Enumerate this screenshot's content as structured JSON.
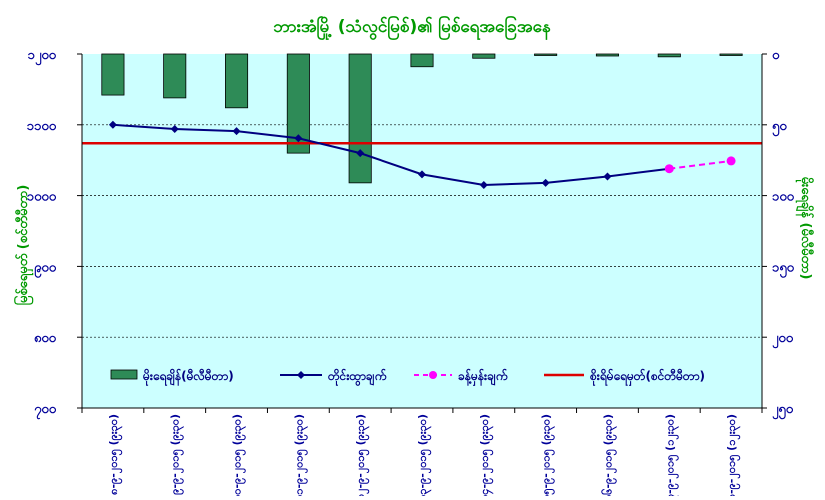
{
  "chart_data": {
    "type": "bar+line",
    "title": "ဘားအံမြို့ (သံလွင်မြစ်)၏ မြစ်ရေအခြေအနေ",
    "ylabel_left": "မြစ်ရေမှတ် (စင်တီမီတာ)",
    "ylabel_right": "မိုးရေချိန် (မီလီမီတာ)",
    "y_left": {
      "min": 700,
      "max": 1200,
      "step": 100,
      "tick_labels": [
        "၇၀၀",
        "၈၀၀",
        "၉၀၀",
        "၁၀၀၀",
        "၁၁၀၀",
        "၁၂၀၀"
      ]
    },
    "y_right": {
      "min": 0,
      "max": 250,
      "step": 50,
      "inverted": true,
      "tick_labels": [
        "၀",
        "၅၀",
        "၁၀၀",
        "၁၅၀",
        "၂၀၀",
        "၂၅၀"
      ]
    },
    "categories": [
      "၈-၉-၂၀၁၅ (၉း၃၀)",
      "၉-၉-၂၀၁၅ (၉း၃၀)",
      "၁၀-၉-၂၀၁၅ (၉း၃၀)",
      "၁၁-၉-၂၀၁၅ (၉း၃၀)",
      "၁၂-၉-၂၀၁၅ (၉း၃၀)",
      "၁၃-၉-၂၀၁၅ (၉း၃၀)",
      "၁၄-၉-၂၀၁၅ (၉း၃၀)",
      "၁၅-၉-၂၀၁၅ (၉း၃၀)",
      "၁၆-၉-၂၀၁၅ (၉း၃၀)",
      "၁၇-၉-၂၀၁၅ (၁၂း၃၀)",
      "၁၈-၉-၂၀၁၅ (၁၂း၃၀)"
    ],
    "rainfall": [
      29,
      31,
      38,
      70,
      91,
      9,
      3,
      0,
      1,
      2,
      0
    ],
    "observed": [
      1100,
      1094,
      1091,
      1081,
      1060,
      1030,
      1015,
      1018,
      1027,
      1038
    ],
    "forecast": [
      null,
      null,
      null,
      null,
      null,
      null,
      null,
      null,
      null,
      1038,
      1049
    ],
    "danger_level": 1074,
    "legend": {
      "rain": "မိုးရေချိန်(မီလီမီတာ)",
      "observed": "တိုင်းထွာချက်",
      "forecast": "ခန့်မှန်းချက်",
      "danger": "စိုးရိမ်ရေမှတ်(စင်တီမီတာ)"
    },
    "colors": {
      "plot_bg": "#ccffff",
      "bar": "#2e8b57",
      "observed": "#000080",
      "forecast": "#ff00ff",
      "danger": "#dd0000",
      "title": "#009900",
      "left_axis": "#000099",
      "right_axis": "#000099",
      "axis_label": "#009900"
    }
  }
}
